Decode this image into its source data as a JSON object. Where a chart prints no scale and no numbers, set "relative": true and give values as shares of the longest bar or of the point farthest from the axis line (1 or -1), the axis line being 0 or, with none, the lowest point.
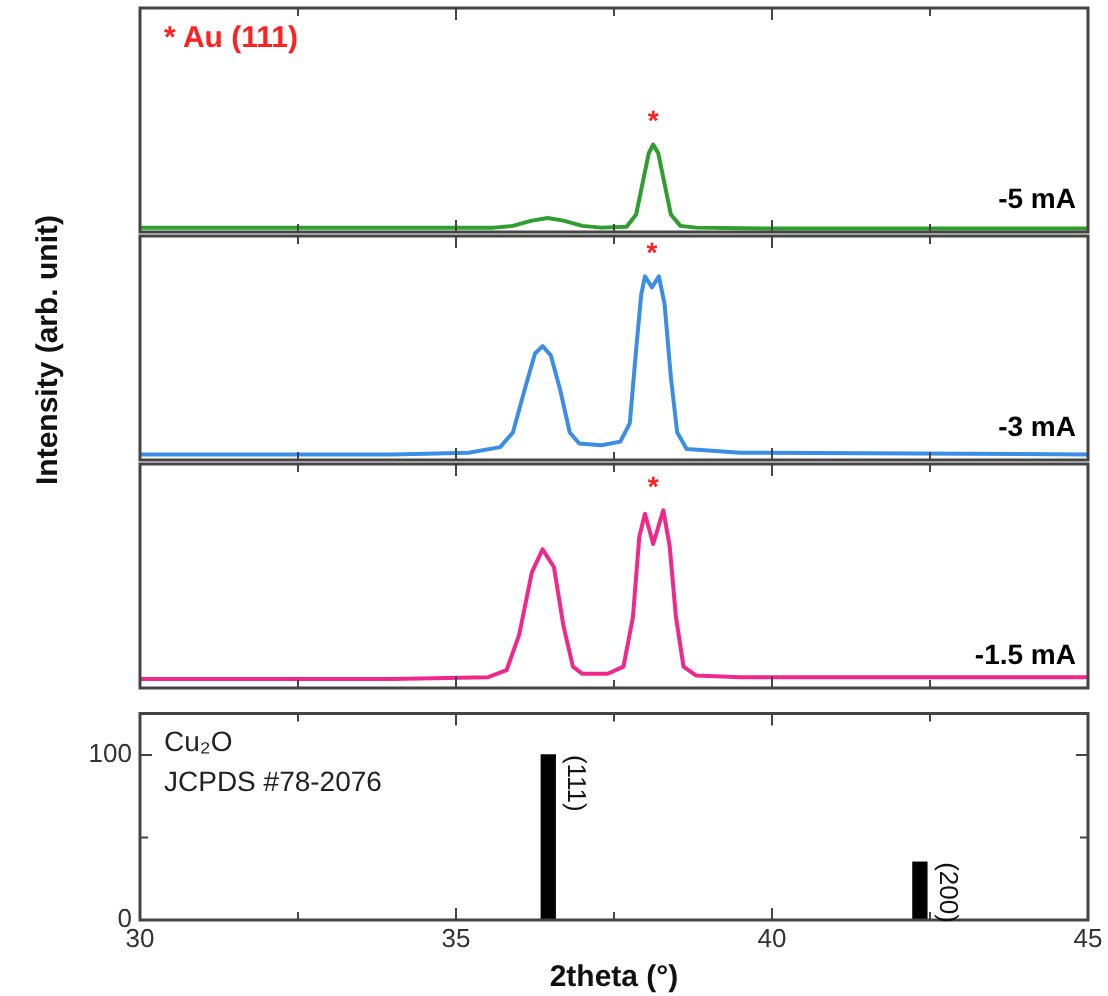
{
  "chart_data": [
    {
      "type": "line",
      "relative": true,
      "ylabel": "Intensity (arb. unit)",
      "xlim": [
        30,
        45
      ],
      "xticks": [
        30,
        {
          "value": 32.5,
          "label": null
        },
        35,
        {
          "value": 37.5,
          "label": null
        },
        40,
        {
          "value": 42.5,
          "label": null
        },
        45
      ],
      "tick_labels": false,
      "annotations": [
        "* Au (111)",
        {
          "text": "*",
          "x": 38.12,
          "y": 1.0
        }
      ],
      "series": [
        {
          "name": "-5 mA",
          "color": "#2e9e2e",
          "x": [
            30,
            34,
            35.6,
            35.9,
            36.2,
            36.45,
            36.7,
            37.0,
            37.3,
            37.7,
            37.85,
            37.95,
            38.05,
            38.12,
            38.2,
            38.3,
            38.4,
            38.55,
            38.8,
            40,
            45
          ],
          "values": [
            0.05,
            0.05,
            0.05,
            0.07,
            0.13,
            0.16,
            0.13,
            0.07,
            0.05,
            0.06,
            0.2,
            0.55,
            0.9,
            1.0,
            0.9,
            0.55,
            0.2,
            0.07,
            0.05,
            0.04,
            0.04
          ]
        }
      ]
    },
    {
      "type": "line",
      "relative": true,
      "xlim": [
        30,
        45
      ],
      "xticks": [
        30,
        {
          "value": 32.5,
          "label": null
        },
        35,
        {
          "value": 37.5,
          "label": null
        },
        40,
        {
          "value": 42.5,
          "label": null
        },
        45
      ],
      "tick_labels": false,
      "annotations": [
        {
          "text": "*",
          "x": 38.1,
          "y": 0.94
        }
      ],
      "series": [
        {
          "name": "-3 mA",
          "color": "#3a8ee6",
          "x": [
            30,
            34,
            35.2,
            35.7,
            35.9,
            36.1,
            36.25,
            36.37,
            36.5,
            36.65,
            36.8,
            36.95,
            37.3,
            37.6,
            37.75,
            37.85,
            37.93,
            37.99,
            38.1,
            38.21,
            38.3,
            38.4,
            38.5,
            38.65,
            39.5,
            45
          ],
          "values": [
            0.03,
            0.03,
            0.04,
            0.07,
            0.15,
            0.4,
            0.58,
            0.62,
            0.57,
            0.38,
            0.15,
            0.09,
            0.08,
            0.1,
            0.2,
            0.6,
            0.9,
            1.0,
            0.94,
            1.0,
            0.85,
            0.45,
            0.15,
            0.06,
            0.04,
            0.03
          ]
        }
      ]
    },
    {
      "type": "line",
      "relative": true,
      "xlim": [
        30,
        45
      ],
      "xticks": [
        30,
        {
          "value": 32.5,
          "label": null
        },
        35,
        {
          "value": 37.5,
          "label": null
        },
        40,
        {
          "value": 42.5,
          "label": null
        },
        45
      ],
      "tick_labels": false,
      "annotations": [
        {
          "text": "*",
          "x": 38.12,
          "y": 0.81
        }
      ],
      "series": [
        {
          "name": "-1.5 mA",
          "color": "#f0288c",
          "x": [
            30,
            34,
            35.5,
            35.8,
            36.0,
            36.2,
            36.37,
            36.55,
            36.7,
            36.85,
            37.0,
            37.4,
            37.65,
            37.8,
            37.9,
            37.99,
            38.12,
            38.28,
            38.38,
            38.48,
            38.6,
            38.8,
            39.5,
            45
          ],
          "values": [
            0.05,
            0.05,
            0.06,
            0.1,
            0.3,
            0.65,
            0.78,
            0.68,
            0.35,
            0.12,
            0.08,
            0.08,
            0.12,
            0.4,
            0.85,
            0.98,
            0.81,
            1.0,
            0.8,
            0.4,
            0.12,
            0.07,
            0.06,
            0.06
          ]
        }
      ]
    },
    {
      "type": "bar",
      "xlabel": "2theta (°)",
      "xlim": [
        30,
        45
      ],
      "xticks": [
        30,
        {
          "value": 32.5,
          "label": null
        },
        35,
        {
          "value": 37.5,
          "label": null
        },
        40,
        {
          "value": 42.5,
          "label": null
        },
        45
      ],
      "ylim": [
        0,
        125
      ],
      "yticks": [
        0,
        {
          "value": 50,
          "label": null
        },
        100
      ],
      "annotations": [
        "Cu₂O",
        "JCPDS #78-2076",
        {
          "text": "(111)",
          "x": 36.46,
          "y": 100
        },
        {
          "text": "(200)",
          "x": 42.34,
          "y": 35
        }
      ],
      "series": [
        {
          "color": "#000000",
          "x": [
            36.46,
            42.34
          ],
          "values": [
            100,
            35
          ]
        }
      ]
    }
  ]
}
